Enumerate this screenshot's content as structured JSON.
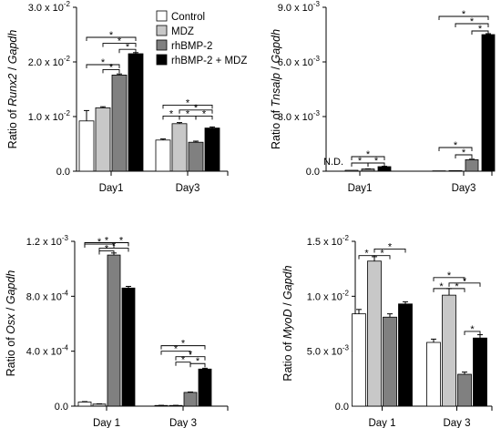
{
  "legend": [
    {
      "label": "Control",
      "color": "#ffffff"
    },
    {
      "label": "MDZ",
      "color": "#c8c8c8"
    },
    {
      "label": "rhBMP-2",
      "color": "#808080"
    },
    {
      "label": "rhBMP-2 + MDZ",
      "color": "#000000"
    }
  ],
  "chart_data": [
    {
      "type": "bar",
      "ylabel_prefix": "Ratio of ",
      "ylabel_gene": "Runx2",
      "ylabel_sep": " / ",
      "ylabel_ref": "Gapdh",
      "categories": [
        "Day1",
        "Day3"
      ],
      "ylim": [
        0,
        0.03
      ],
      "ytick_base": [
        "0.0",
        "1.0 x 10",
        "2.0 x 10",
        "3.0 x 10"
      ],
      "ytick_exp": [
        "",
        "-2",
        "-2",
        "-2"
      ],
      "series": [
        {
          "name": "Control",
          "values": [
            0.0092,
            0.0057
          ],
          "errors": [
            0.0019,
            0.0002
          ]
        },
        {
          "name": "MDZ",
          "values": [
            0.0116,
            0.0087
          ],
          "errors": [
            0.0002,
            0.0002
          ]
        },
        {
          "name": "rhBMP-2",
          "values": [
            0.0176,
            0.0053
          ],
          "errors": [
            0.0002,
            0.0002
          ]
        },
        {
          "name": "rhBMP-2 + MDZ",
          "values": [
            0.0215,
            0.0079
          ],
          "errors": [
            0.0002,
            0.0002
          ]
        }
      ],
      "significance": [
        {
          "cat": 0,
          "from": 0,
          "to": 3,
          "level": 0.0245
        },
        {
          "cat": 0,
          "from": 1,
          "to": 3,
          "level": 0.0234
        },
        {
          "cat": 0,
          "from": 2,
          "to": 3,
          "level": 0.0223
        },
        {
          "cat": 0,
          "from": 0,
          "to": 2,
          "level": 0.0195
        },
        {
          "cat": 0,
          "from": 1,
          "to": 2,
          "level": 0.0186
        },
        {
          "cat": 1,
          "from": 0,
          "to": 3,
          "level": 0.0121
        },
        {
          "cat": 1,
          "from": 1,
          "to": 3,
          "level": 0.0112
        },
        {
          "cat": 1,
          "from": 0,
          "to": 1,
          "level": 0.0101
        },
        {
          "cat": 1,
          "from": 1,
          "to": 2,
          "level": 0.0101
        },
        {
          "cat": 1,
          "from": 2,
          "to": 3,
          "level": 0.0101
        }
      ],
      "annotation": ""
    },
    {
      "type": "bar",
      "ylabel_prefix": "Ratio of ",
      "ylabel_gene": "Tnsalp",
      "ylabel_sep": " / ",
      "ylabel_ref": "Gapdh",
      "categories": [
        "Day1",
        "Day3"
      ],
      "ylim": [
        0,
        0.009
      ],
      "ytick_base": [
        "0.0",
        "3.0 x 10",
        "6.0 x 10",
        "9.0 x 10"
      ],
      "ytick_exp": [
        "",
        "-3",
        "-3",
        "-3"
      ],
      "series": [
        {
          "name": "Control",
          "values": [
            0,
            2e-05
          ],
          "errors": [
            0,
            0
          ]
        },
        {
          "name": "MDZ",
          "values": [
            5e-05,
            3e-05
          ],
          "errors": [
            0,
            0
          ]
        },
        {
          "name": "rhBMP-2",
          "values": [
            0.00012,
            0.00063
          ],
          "errors": [
            1e-05,
            3e-05
          ]
        },
        {
          "name": "rhBMP-2 + MDZ",
          "values": [
            0.00025,
            0.0075
          ],
          "errors": [
            2e-05,
            5e-05
          ]
        }
      ],
      "significance": [
        {
          "cat": 0,
          "from": 1,
          "to": 3,
          "level": 0.0008
        },
        {
          "cat": 0,
          "from": 1,
          "to": 2,
          "level": 0.00045
        },
        {
          "cat": 0,
          "from": 2,
          "to": 3,
          "level": 0.00045
        },
        {
          "cat": 1,
          "from": 0,
          "to": 3,
          "level": 0.0085
        },
        {
          "cat": 1,
          "from": 1,
          "to": 3,
          "level": 0.0081
        },
        {
          "cat": 1,
          "from": 2,
          "to": 3,
          "level": 0.0077
        },
        {
          "cat": 1,
          "from": 0,
          "to": 2,
          "level": 0.0013
        },
        {
          "cat": 1,
          "from": 1,
          "to": 2,
          "level": 0.0009
        }
      ],
      "annotation": "N.D."
    },
    {
      "type": "bar",
      "ylabel_prefix": "Ratio of ",
      "ylabel_gene": "Osx",
      "ylabel_sep": " / ",
      "ylabel_ref": "Gapdh",
      "categories": [
        "Day 1",
        "Day 3"
      ],
      "ylim": [
        0,
        0.0012
      ],
      "ytick_base": [
        "0.0",
        "4.0 x 10",
        "8.0 x 10",
        "1.2 x 10"
      ],
      "ytick_exp": [
        "",
        "-4",
        "-4",
        "-3"
      ],
      "series": [
        {
          "name": "Control",
          "values": [
            3e-05,
            5e-06
          ],
          "errors": [
            3e-06,
            1e-06
          ]
        },
        {
          "name": "MDZ",
          "values": [
            1.5e-05,
            5e-06
          ],
          "errors": [
            2e-06,
            1e-06
          ]
        },
        {
          "name": "rhBMP-2",
          "values": [
            0.0011,
            0.0001
          ],
          "errors": [
            1.5e-05,
            3e-06
          ]
        },
        {
          "name": "rhBMP-2 + MDZ",
          "values": [
            0.00086,
            0.00027
          ],
          "errors": [
            1.2e-05,
            6e-06
          ]
        }
      ],
      "significance": [
        {
          "cat": 0,
          "from": 0,
          "to": 3,
          "level": 0.00119
        },
        {
          "cat": 0,
          "from": 1,
          "to": 3,
          "level": 0.00115
        },
        {
          "cat": 0,
          "from": 0,
          "to": 2,
          "level": 0.00118
        },
        {
          "cat": 0,
          "from": 1,
          "to": 2,
          "level": 0.00113
        },
        {
          "cat": 0,
          "from": 2,
          "to": 3,
          "level": 0.00119
        },
        {
          "cat": 1,
          "from": 0,
          "to": 3,
          "level": 0.00044
        },
        {
          "cat": 1,
          "from": 0,
          "to": 2,
          "level": 0.0004
        },
        {
          "cat": 1,
          "from": 1,
          "to": 3,
          "level": 0.00036
        },
        {
          "cat": 1,
          "from": 1,
          "to": 2,
          "level": 0.00032
        },
        {
          "cat": 1,
          "from": 2,
          "to": 3,
          "level": 0.00031
        }
      ],
      "annotation": ""
    },
    {
      "type": "bar",
      "ylabel_prefix": "Ratio of ",
      "ylabel_gene": "MyoD",
      "ylabel_sep": " / ",
      "ylabel_ref": "Gapdh",
      "categories": [
        "Day 1",
        "Day 3"
      ],
      "ylim": [
        0,
        0.015
      ],
      "ytick_base": [
        "0.0",
        "5.0 x 10",
        "1.0 x 10",
        "1.5 x 10"
      ],
      "ytick_exp": [
        "",
        "-3",
        "-2",
        "-2"
      ],
      "series": [
        {
          "name": "Control",
          "values": [
            0.0084,
            0.0058
          ],
          "errors": [
            0.0004,
            0.0003
          ]
        },
        {
          "name": "MDZ",
          "values": [
            0.0132,
            0.0101
          ],
          "errors": [
            0.0004,
            0.0006
          ]
        },
        {
          "name": "rhBMP-2",
          "values": [
            0.0081,
            0.0029
          ],
          "errors": [
            0.0003,
            0.0002
          ]
        },
        {
          "name": "rhBMP-2 + MDZ",
          "values": [
            0.0093,
            0.0062
          ],
          "errors": [
            0.0002,
            0.0003
          ]
        }
      ],
      "significance": [
        {
          "cat": 0,
          "from": 0,
          "to": 1,
          "level": 0.0137
        },
        {
          "cat": 0,
          "from": 1,
          "to": 2,
          "level": 0.0137
        },
        {
          "cat": 0,
          "from": 1,
          "to": 3,
          "level": 0.0143
        },
        {
          "cat": 1,
          "from": 0,
          "to": 2,
          "level": 0.0117
        },
        {
          "cat": 1,
          "from": 1,
          "to": 3,
          "level": 0.0112
        },
        {
          "cat": 1,
          "from": 0,
          "to": 1,
          "level": 0.0107
        },
        {
          "cat": 1,
          "from": 1,
          "to": 2,
          "level": 0.0107
        },
        {
          "cat": 1,
          "from": 2,
          "to": 3,
          "level": 0.0068
        }
      ],
      "annotation": ""
    }
  ]
}
